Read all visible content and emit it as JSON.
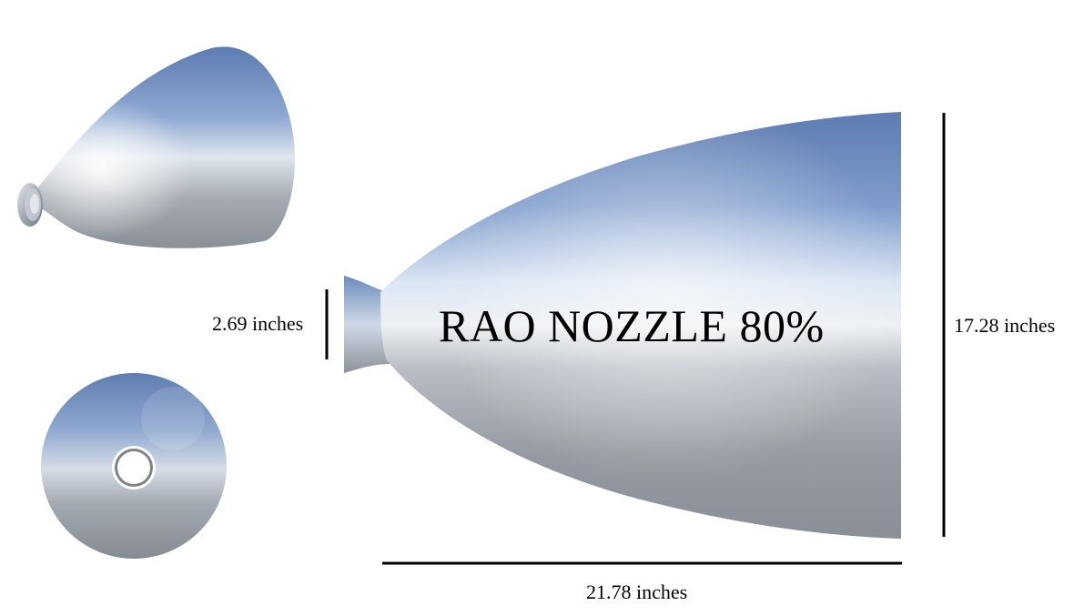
{
  "title": "RAO NOZZLE 80%",
  "dimensions": {
    "throat_diameter": "2.69 inches",
    "exit_diameter": "17.28 inches",
    "length": "21.78 inches"
  },
  "colors": {
    "nozzle_dark": "#5f7db0",
    "nozzle_light": "#e9f0f8",
    "nozzle_grey": "#8a9099",
    "dimension_line": "#000000"
  }
}
